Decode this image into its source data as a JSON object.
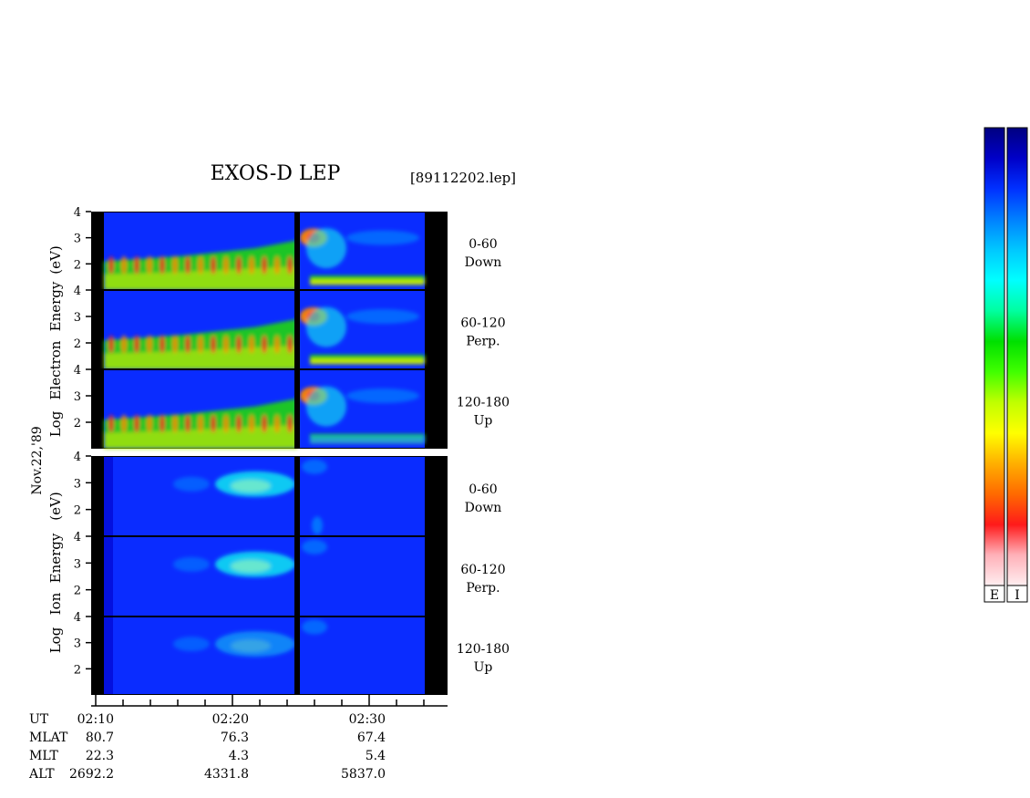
{
  "title": "EXOS-D LEP",
  "file_label": "[89112202.lep]",
  "date_label": "Nov.22,'89",
  "electron_label": [
    "Log",
    "Electron",
    "Energy",
    "(eV)"
  ],
  "ion_label": [
    "Log",
    "Ion",
    "Energy",
    "(eV)"
  ],
  "colorbar": {
    "labels": [
      "E",
      "I"
    ],
    "colors": [
      "#ffeef0",
      "#ffb0b8",
      "#ff1a1a",
      "#ff6a00",
      "#ffb000",
      "#ffff00",
      "#c0ff00",
      "#40ff00",
      "#00e000",
      "#00ffa0",
      "#00ffff",
      "#00c8ff",
      "#0080ff",
      "#0030ff",
      "#0000c8",
      "#000080"
    ]
  },
  "chart_data": {
    "type": "heatmap",
    "title": "EXOS-D LEP",
    "panels": [
      {
        "species": "Electron",
        "angle": "0-60",
        "direction": "Down",
        "yticks": [
          "4",
          "3",
          "2"
        ]
      },
      {
        "species": "Electron",
        "angle": "60-120",
        "direction": "Perp.",
        "yticks": [
          "4",
          "3",
          "2"
        ]
      },
      {
        "species": "Electron",
        "angle": "120-180",
        "direction": "Up",
        "yticks": [
          "4",
          "3",
          "2"
        ]
      },
      {
        "species": "Ion",
        "angle": "0-60",
        "direction": "Down",
        "yticks": [
          "4",
          "3",
          "2"
        ]
      },
      {
        "species": "Ion",
        "angle": "60-120",
        "direction": "Perp.",
        "yticks": [
          "4",
          "3",
          "2"
        ]
      },
      {
        "species": "Ion",
        "angle": "120-180",
        "direction": "Up",
        "yticks": [
          "4",
          "3",
          "2"
        ]
      }
    ],
    "ylim": [
      1,
      4
    ],
    "xlim": [
      "02:10",
      "02:34"
    ],
    "rows": [
      {
        "label": "UT",
        "values": [
          "02:10",
          "02:20",
          "02:30"
        ]
      },
      {
        "label": "MLAT",
        "values": [
          "80.7",
          "76.3",
          "67.4"
        ]
      },
      {
        "label": "MLT",
        "values": [
          "22.3",
          "4.3",
          "5.4"
        ]
      },
      {
        "label": "ALT",
        "values": [
          "2692.2",
          "4331.8",
          "5837.0"
        ]
      }
    ]
  }
}
